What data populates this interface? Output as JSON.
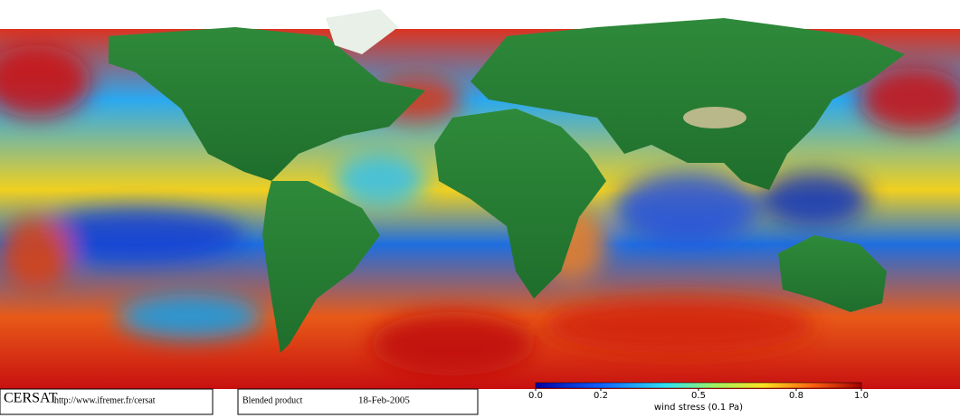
{
  "logo": "CERSAT",
  "url": "http://www.ifremer.fr/cersat",
  "product": "Blended product",
  "date": "18-Feb-2005",
  "colorbar": {
    "label": "wind stress (0.1 Pa)",
    "lim": [
      0,
      1
    ],
    "ticks": [
      {
        "value": 0,
        "label": "0.0"
      },
      0.2,
      0.5,
      0.8,
      {
        "value": 1,
        "label": "1.0"
      }
    ]
  }
}
